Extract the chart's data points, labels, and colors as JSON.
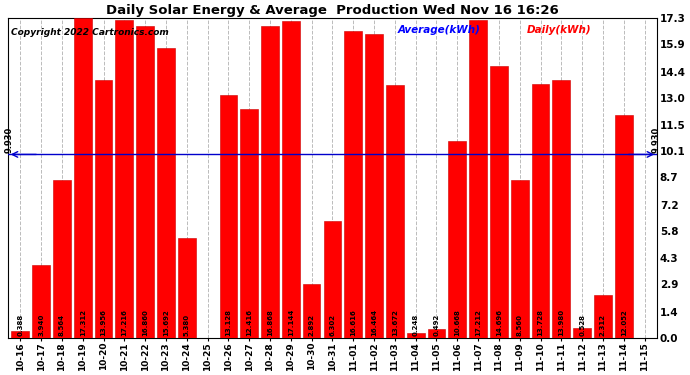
{
  "title": "Daily Solar Energy & Average  Production Wed Nov 16 16:26",
  "copyright": "Copyright 2022 Cartronics.com",
  "average_label": "Average(kWh)",
  "daily_label": "Daily(kWh)",
  "average_value": 9.93,
  "categories": [
    "10-16",
    "10-17",
    "10-18",
    "10-19",
    "10-20",
    "10-21",
    "10-22",
    "10-23",
    "10-24",
    "10-25",
    "10-26",
    "10-27",
    "10-28",
    "10-29",
    "10-30",
    "10-31",
    "11-01",
    "11-02",
    "11-03",
    "11-04",
    "11-05",
    "11-06",
    "11-07",
    "11-08",
    "11-09",
    "11-10",
    "11-11",
    "11-12",
    "11-13",
    "11-14",
    "11-15"
  ],
  "values": [
    0.388,
    3.94,
    8.564,
    17.312,
    13.956,
    17.216,
    16.86,
    15.692,
    5.38,
    0.0,
    13.128,
    12.416,
    16.868,
    17.144,
    2.892,
    6.302,
    16.616,
    16.464,
    13.672,
    0.248,
    0.492,
    10.668,
    17.212,
    14.696,
    8.56,
    13.728,
    13.98,
    0.528,
    2.312,
    12.052,
    0.0
  ],
  "bar_color": "#ff0000",
  "bar_edge_color": "#cc0000",
  "avg_line_color": "#0000cc",
  "background_color": "#ffffff",
  "grid_color": "#bbbbbb",
  "yticks_right": [
    0.0,
    1.4,
    2.9,
    4.3,
    5.8,
    7.2,
    8.7,
    10.1,
    11.5,
    13.0,
    14.4,
    15.9,
    17.3
  ],
  "value_fontsize": 5.0,
  "xlabel_fontsize": 6.5,
  "ytick_fontsize": 7.5
}
